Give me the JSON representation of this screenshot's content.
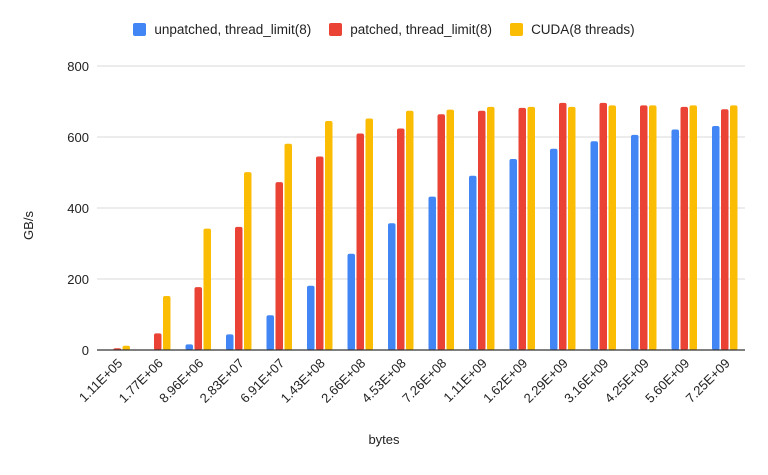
{
  "chart_data": {
    "type": "bar",
    "xlabel": "bytes",
    "ylabel": "GB/s",
    "ylim": [
      0,
      800
    ],
    "yticks": [
      0,
      200,
      400,
      600,
      800
    ],
    "grid": true,
    "legend_position": "top",
    "categories": [
      "1.11E+05",
      "1.77E+06",
      "8.96E+06",
      "2.83E+07",
      "6.91E+07",
      "1.43E+08",
      "2.66E+08",
      "4.53E+08",
      "7.26E+08",
      "1.11E+09",
      "1.62E+09",
      "2.29E+09",
      "3.16E+09",
      "4.25E+09",
      "5.60E+09",
      "7.25E+09"
    ],
    "series": [
      {
        "name": "unpatched, thread_limit(8)",
        "color": "#4285f4",
        "values": [
          0,
          0,
          16,
          44,
          98,
          181,
          271,
          357,
          432,
          491,
          538,
          567,
          588,
          606,
          621,
          631
        ]
      },
      {
        "name": "patched, thread_limit(8)",
        "color": "#ea4335",
        "values": [
          5,
          47,
          177,
          347,
          473,
          545,
          610,
          624,
          664,
          674,
          682,
          696,
          696,
          689,
          685,
          678
        ]
      },
      {
        "name": "CUDA(8 threads)",
        "color": "#fbbc04",
        "values": [
          12,
          152,
          342,
          501,
          581,
          645,
          652,
          674,
          677,
          685,
          685,
          685,
          689,
          689,
          689,
          689
        ]
      }
    ]
  }
}
